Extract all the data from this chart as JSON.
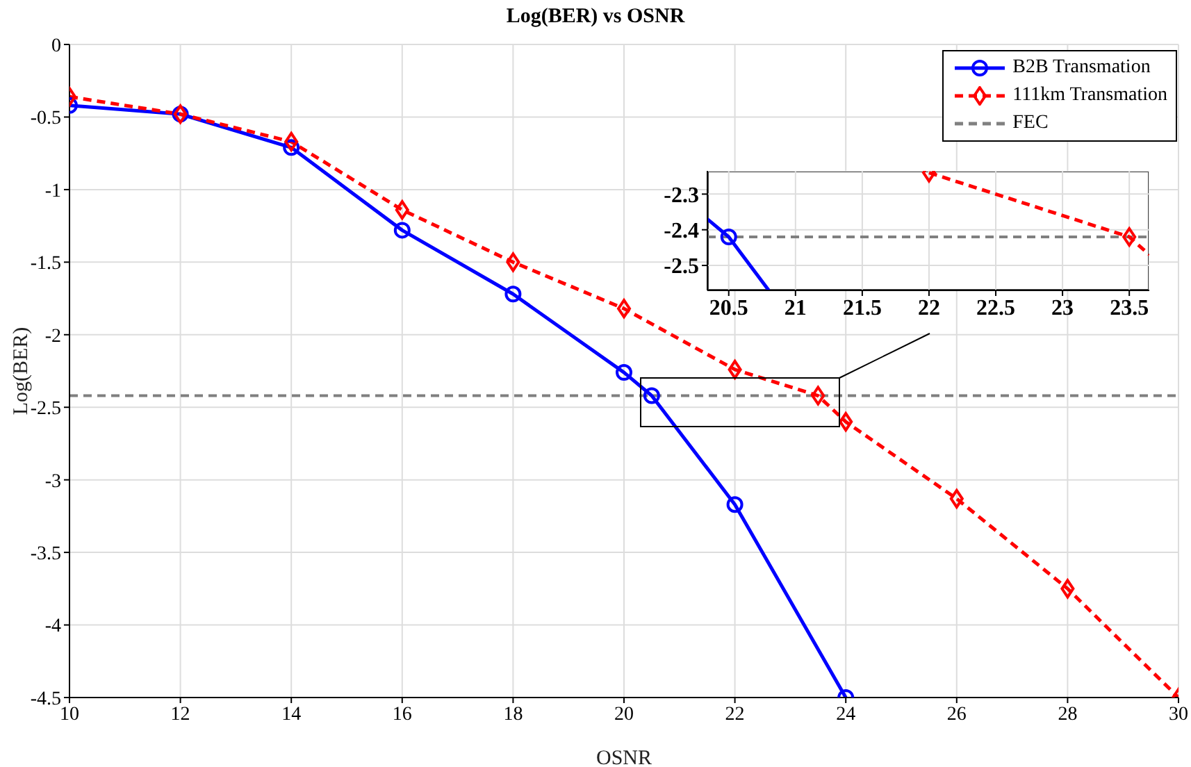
{
  "chart_data": [
    {
      "type": "line",
      "title": "Log(BER) vs OSNR",
      "xlabel": "OSNR",
      "ylabel": "Log(BER)",
      "series": [
        {
          "name": "B2B Transmation",
          "color": "#0000ff",
          "marker": "circle",
          "line_style": "solid",
          "x": [
            10,
            12,
            14,
            16,
            18,
            20,
            20.5,
            22,
            24
          ],
          "values": [
            -0.42,
            -0.48,
            -0.71,
            -1.28,
            -1.72,
            -2.26,
            -2.42,
            -3.17,
            -4.5
          ]
        },
        {
          "name": "111km Transmation",
          "color": "#ff0000",
          "marker": "diamond",
          "line_style": "dashed",
          "x": [
            10,
            12,
            14,
            16,
            18,
            20,
            22,
            23.5,
            24,
            26,
            28,
            30
          ],
          "values": [
            -0.36,
            -0.48,
            -0.67,
            -1.14,
            -1.5,
            -1.82,
            -2.24,
            -2.42,
            -2.6,
            -3.13,
            -3.75,
            -4.5
          ]
        }
      ],
      "ref_lines": [
        {
          "axis": "y",
          "value": -2.42,
          "label": "FEC",
          "color": "#808080",
          "line_style": "dashed"
        }
      ],
      "xlim": [
        10,
        30
      ],
      "xticks": [
        10,
        12,
        14,
        16,
        18,
        20,
        22,
        24,
        26,
        28,
        30
      ],
      "ylim": [
        -4.5,
        0
      ],
      "yticks": [
        -4.5,
        -4,
        -3.5,
        -3,
        -2.5,
        -2,
        -1.5,
        -1,
        -0.5,
        0
      ],
      "grid": true,
      "legend": "top right"
    },
    {
      "type": "line",
      "series": [
        {
          "color": "#0000ff",
          "marker": "none",
          "line_style": "solid",
          "x": [
            20.34,
            20.5,
            20.8
          ],
          "values": [
            -2.37,
            -2.42,
            -2.57
          ]
        },
        {
          "color": "#ff0000",
          "marker": "none",
          "line_style": "dashed",
          "x": [
            22,
            23.5,
            23.65
          ],
          "values": [
            -2.24,
            -2.42,
            -2.47
          ]
        },
        {
          "type": "scatter",
          "color": "#0000ff",
          "marker": "circle",
          "x": [
            20.5
          ],
          "values": [
            -2.42
          ]
        },
        {
          "type": "scatter",
          "color": "#ff0000",
          "marker": "diamond",
          "x": [
            22,
            23.5
          ],
          "values": [
            -2.24,
            -2.42
          ]
        }
      ],
      "ref_lines": [
        {
          "axis": "y",
          "value": -2.42,
          "color": "#808080",
          "line_style": "dashed"
        }
      ],
      "xlim": [
        20.34,
        23.65
      ],
      "xticks": [
        20.5,
        21,
        21.5,
        22,
        22.5,
        23,
        23.5
      ],
      "ylim": [
        -2.57,
        -2.235
      ],
      "yticks": [
        -2.5,
        -2.4,
        -2.3
      ],
      "grid": true
    }
  ]
}
